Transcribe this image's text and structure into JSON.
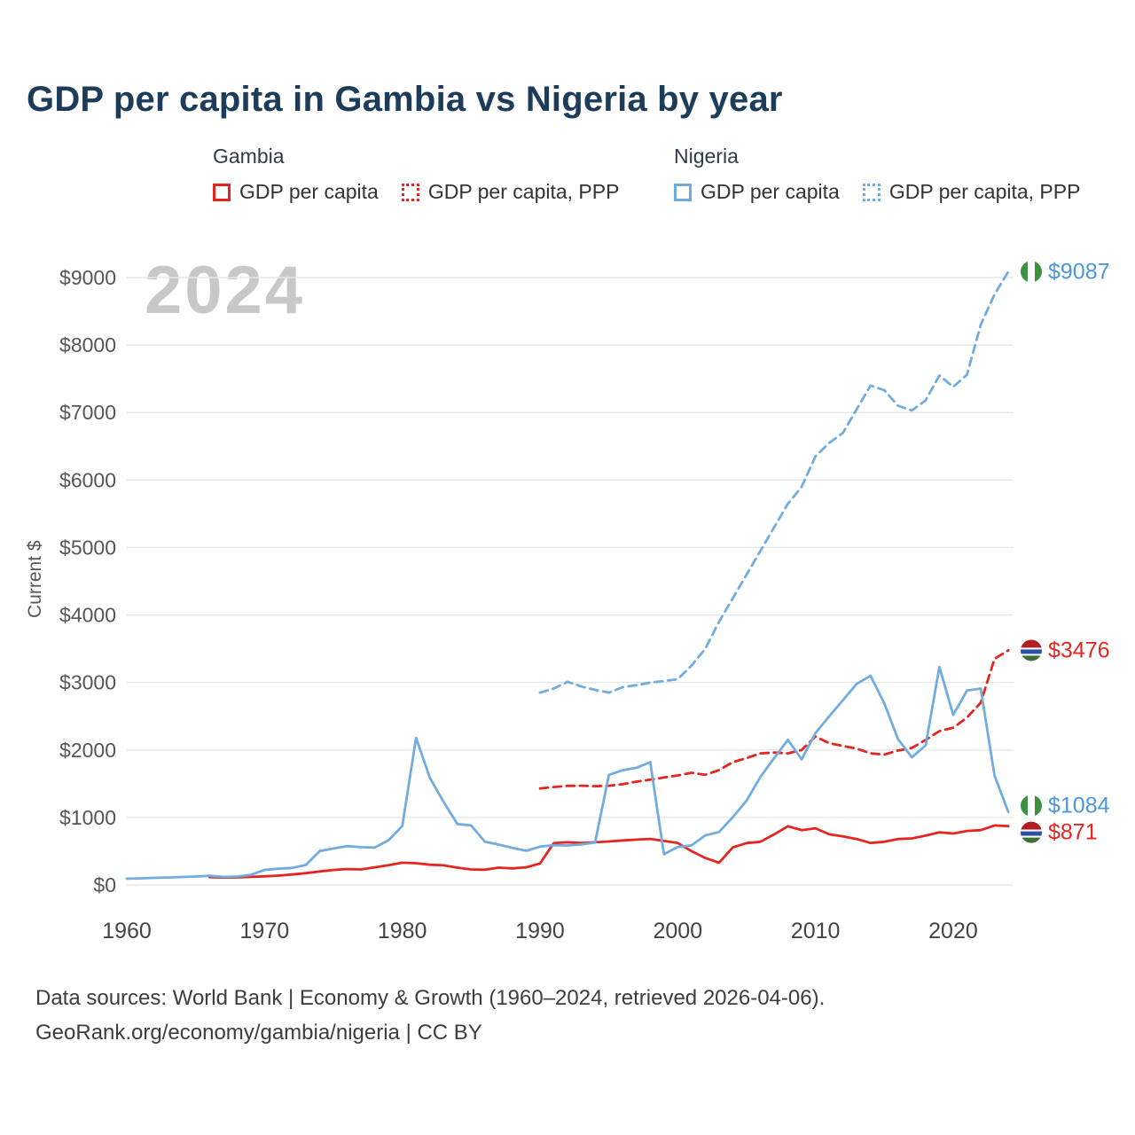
{
  "title": "GDP per capita in Gambia vs Nigeria by year",
  "watermark": "2024",
  "legend": {
    "groups": [
      {
        "name": "Gambia",
        "items": [
          {
            "label": "GDP per capita",
            "style": "solid",
            "color": "#e52620"
          },
          {
            "label": "GDP per capita, PPP",
            "style": "dashed",
            "color": "#e52620"
          }
        ]
      },
      {
        "name": "Nigeria",
        "items": [
          {
            "label": "GDP per capita",
            "style": "solid",
            "color": "#72acde"
          },
          {
            "label": "GDP per capita, PPP",
            "style": "dashed",
            "color": "#72acde"
          }
        ]
      }
    ]
  },
  "chart_data": {
    "type": "line",
    "title": "GDP per capita in Gambia vs Nigeria by year",
    "xlabel": "",
    "ylabel": "Current $",
    "x_range": [
      1960,
      2024
    ],
    "ylim": [
      0,
      9400
    ],
    "grid": "horizontal",
    "x_ticks": [
      1960,
      1970,
      1980,
      1990,
      2000,
      2010,
      2020
    ],
    "y_ticks": [
      0,
      1000,
      2000,
      3000,
      4000,
      5000,
      6000,
      7000,
      8000,
      9000
    ],
    "y_tick_prefix": "$",
    "series": [
      {
        "name": "Gambia GDP per capita",
        "country": "Gambia",
        "label": "GDP per capita",
        "color": "#e52620",
        "style": "solid",
        "start_year": 1966,
        "end_value": 871,
        "values": [
          115,
          110,
          112,
          120,
          128,
          138,
          155,
          175,
          200,
          222,
          235,
          230,
          262,
          292,
          330,
          322,
          300,
          290,
          256,
          230,
          226,
          256,
          246,
          262,
          318,
          620,
          632,
          622,
          632,
          644,
          660,
          672,
          682,
          652,
          622,
          500,
          400,
          330,
          557,
          620,
          640,
          750,
          870,
          812,
          840,
          750,
          720,
          680,
          622,
          640,
          680,
          690,
          730,
          780,
          762,
          800,
          812,
          882,
          871
        ]
      },
      {
        "name": "Gambia GDP per capita, PPP",
        "country": "Gambia",
        "label": "GDP per capita, PPP",
        "color": "#e52620",
        "style": "dashed",
        "start_year": 1990,
        "end_value": 3476,
        "values": [
          1430,
          1450,
          1468,
          1470,
          1462,
          1470,
          1492,
          1530,
          1560,
          1592,
          1622,
          1662,
          1632,
          1702,
          1820,
          1880,
          1950,
          1962,
          1950,
          2000,
          2200,
          2100,
          2060,
          2020,
          1950,
          1932,
          1992,
          2030,
          2150,
          2280,
          2330,
          2480,
          2700,
          3350,
          3476
        ]
      },
      {
        "name": "Nigeria GDP per capita",
        "country": "Nigeria",
        "label": "GDP per capita",
        "color": "#72acde",
        "style": "solid",
        "start_year": 1960,
        "end_value": 1084,
        "values": [
          93,
          97,
          105,
          110,
          118,
          125,
          135,
          120,
          125,
          148,
          224,
          240,
          252,
          295,
          500,
          540,
          575,
          560,
          555,
          662,
          874,
          2180,
          1590,
          1230,
          903,
          882,
          640,
          598,
          549,
          506,
          568,
          590,
          585,
          600,
          628,
          1630,
          1700,
          1735,
          1820,
          455,
          563,
          586,
          735,
          785,
          1005,
          1250,
          1600,
          1880,
          2150,
          1860,
          2250,
          2500,
          2740,
          2980,
          3100,
          2690,
          2160,
          1890,
          2070,
          3230,
          2520,
          2880,
          2910,
          1620,
          1084
        ]
      },
      {
        "name": "Nigeria GDP per capita, PPP",
        "country": "Nigeria",
        "label": "GDP per capita, PPP",
        "color": "#72acde",
        "style": "dashed",
        "start_year": 1990,
        "end_value": 9087,
        "values": [
          2850,
          2910,
          3010,
          2940,
          2890,
          2850,
          2930,
          2960,
          3000,
          3020,
          3050,
          3250,
          3500,
          3900,
          4250,
          4600,
          4950,
          5300,
          5650,
          5900,
          6350,
          6550,
          6700,
          7050,
          7400,
          7330,
          7100,
          7030,
          7180,
          7550,
          7380,
          7560,
          8300,
          8750,
          9087
        ]
      }
    ]
  },
  "end_labels": [
    {
      "text": "$9087",
      "value": 9087,
      "flag": "nigeria",
      "color": "#4d97d9"
    },
    {
      "text": "$3476",
      "value": 3476,
      "flag": "gambia",
      "color": "#e52620"
    },
    {
      "text": "$1084",
      "value": 1084,
      "flag": "nigeria",
      "color": "#4d97d9"
    },
    {
      "text": "$871",
      "value": 871,
      "flag": "gambia",
      "color": "#e52620"
    }
  ],
  "flags": {
    "nigeria": {
      "green": "#3d9141",
      "white": "#ffffff"
    },
    "gambia": {
      "red": "#b01e24",
      "blue": "#2b50a1",
      "green": "#3c7033",
      "white": "#ffffff"
    }
  },
  "footer": {
    "line1": "Data sources: World Bank | Economy & Growth (1960–2024, retrieved 2026-04-06).",
    "line2": "GeoRank.org/economy/gambia/nigeria | CC BY"
  }
}
